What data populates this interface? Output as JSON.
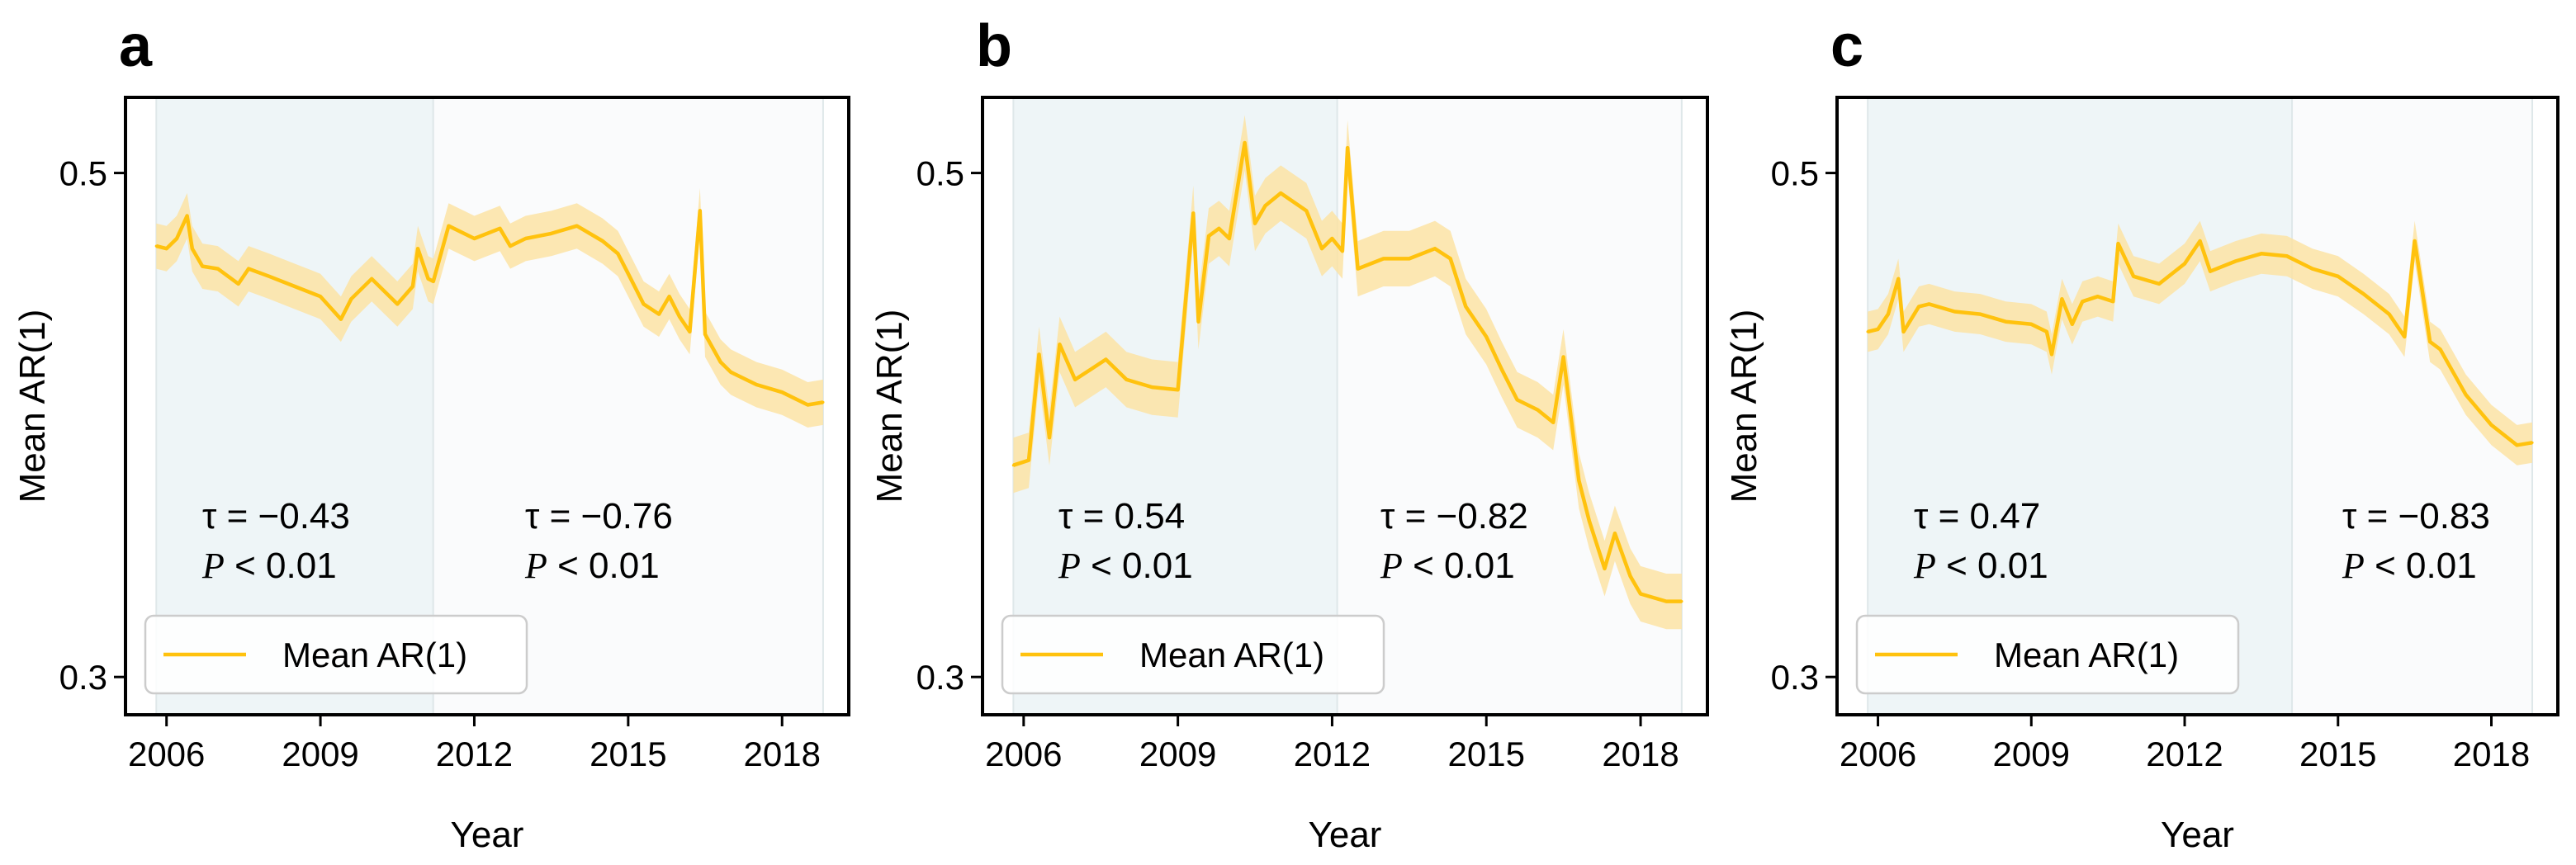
{
  "colors": {
    "line": "#ffc20e",
    "band": "#fbe3a4",
    "shade_early": "#eef5f7",
    "shade_late": "#fafbfc"
  },
  "chart_data": [
    {
      "type": "line",
      "panel": "a",
      "xlabel": "Year",
      "ylabel": "Mean AR(1)",
      "xlim": [
        2005.2,
        2019.3
      ],
      "ylim": [
        0.285,
        0.53
      ],
      "xticks": [
        2006,
        2009,
        2012,
        2015,
        2018
      ],
      "yticks": [
        0.3,
        0.5
      ],
      "ytick_labels": [
        "0.3",
        "0.5"
      ],
      "shaded_periods": [
        [
          2005.8,
          2011.2
        ],
        [
          2011.2,
          2018.8
        ]
      ],
      "legend": "Mean AR(1)",
      "annotations": [
        {
          "tau": "τ = −0.43",
          "p_var": "P",
          "p_rest": " < 0.01"
        },
        {
          "tau": "τ = −0.76",
          "p_var": "P",
          "p_rest": " < 0.01"
        }
      ],
      "series": [
        {
          "name": "Mean AR(1)",
          "band": 0.009,
          "x": [
            2005.8,
            2006.0,
            2006.2,
            2006.4,
            2006.5,
            2006.7,
            2007.0,
            2007.4,
            2007.6,
            2008.0,
            2008.5,
            2009.0,
            2009.4,
            2009.6,
            2010.0,
            2010.5,
            2010.8,
            2010.9,
            2011.1,
            2011.2,
            2011.5,
            2012.0,
            2012.5,
            2012.7,
            2013.0,
            2013.5,
            2014.0,
            2014.5,
            2014.8,
            2015.0,
            2015.3,
            2015.6,
            2015.8,
            2016.0,
            2016.2,
            2016.4,
            2016.5,
            2016.8,
            2017.0,
            2017.5,
            2018.0,
            2018.5,
            2018.8
          ],
          "y": [
            0.471,
            0.47,
            0.474,
            0.483,
            0.47,
            0.463,
            0.462,
            0.456,
            0.462,
            0.459,
            0.455,
            0.451,
            0.442,
            0.45,
            0.458,
            0.448,
            0.455,
            0.47,
            0.458,
            0.457,
            0.479,
            0.474,
            0.478,
            0.471,
            0.474,
            0.476,
            0.479,
            0.473,
            0.468,
            0.46,
            0.448,
            0.444,
            0.451,
            0.443,
            0.437,
            0.485,
            0.436,
            0.425,
            0.421,
            0.416,
            0.413,
            0.408,
            0.409
          ]
        }
      ]
    },
    {
      "type": "line",
      "panel": "b",
      "xlabel": "Year",
      "ylabel": "Mean AR(1)",
      "xlim": [
        2005.2,
        2019.3
      ],
      "ylim": [
        0.285,
        0.53
      ],
      "xticks": [
        2006,
        2009,
        2012,
        2015,
        2018
      ],
      "yticks": [
        0.3,
        0.5
      ],
      "ytick_labels": [
        "0.3",
        "0.5"
      ],
      "shaded_periods": [
        [
          2005.8,
          2012.1
        ],
        [
          2012.1,
          2018.8
        ]
      ],
      "legend": "Mean AR(1)",
      "annotations": [
        {
          "tau": "τ = 0.54",
          "p_var": "P",
          "p_rest": " < 0.01"
        },
        {
          "tau": "τ = −0.82",
          "p_var": "P",
          "p_rest": " < 0.01"
        }
      ],
      "series": [
        {
          "name": "Mean AR(1)",
          "band": 0.011,
          "x": [
            2005.8,
            2006.1,
            2006.3,
            2006.5,
            2006.7,
            2007.0,
            2007.3,
            2007.6,
            2008.0,
            2008.5,
            2009.0,
            2009.3,
            2009.4,
            2009.6,
            2009.8,
            2010.0,
            2010.3,
            2010.5,
            2010.7,
            2011.0,
            2011.5,
            2011.8,
            2012.0,
            2012.2,
            2012.3,
            2012.5,
            2013.0,
            2013.5,
            2014.0,
            2014.3,
            2014.6,
            2015.0,
            2015.3,
            2015.6,
            2016.0,
            2016.3,
            2016.5,
            2016.8,
            2017.0,
            2017.3,
            2017.5,
            2017.8,
            2018.0,
            2018.5,
            2018.8
          ],
          "y": [
            0.384,
            0.386,
            0.428,
            0.395,
            0.432,
            0.418,
            0.422,
            0.426,
            0.418,
            0.415,
            0.414,
            0.484,
            0.441,
            0.475,
            0.478,
            0.474,
            0.512,
            0.48,
            0.487,
            0.492,
            0.485,
            0.47,
            0.474,
            0.469,
            0.51,
            0.462,
            0.466,
            0.466,
            0.47,
            0.466,
            0.447,
            0.435,
            0.422,
            0.41,
            0.406,
            0.401,
            0.427,
            0.378,
            0.362,
            0.343,
            0.357,
            0.34,
            0.333,
            0.33,
            0.33
          ]
        }
      ]
    },
    {
      "type": "line",
      "panel": "c",
      "xlabel": "Year",
      "ylabel": "Mean AR(1)",
      "xlim": [
        2005.2,
        2019.3
      ],
      "ylim": [
        0.285,
        0.53
      ],
      "xticks": [
        2006,
        2009,
        2012,
        2015,
        2018
      ],
      "yticks": [
        0.3,
        0.5
      ],
      "ytick_labels": [
        "0.3",
        "0.5"
      ],
      "shaded_periods": [
        [
          2005.8,
          2014.1
        ],
        [
          2014.1,
          2018.8
        ]
      ],
      "legend": "Mean AR(1)",
      "annotations": [
        {
          "tau": "τ = 0.47",
          "p_var": "P",
          "p_rest": " < 0.01"
        },
        {
          "tau": "τ = −0.83",
          "p_var": "P",
          "p_rest": " < 0.01"
        }
      ],
      "series": [
        {
          "name": "Mean AR(1)",
          "band": 0.008,
          "x": [
            2005.8,
            2006.0,
            2006.2,
            2006.4,
            2006.5,
            2006.8,
            2007.0,
            2007.5,
            2008.0,
            2008.5,
            2009.0,
            2009.3,
            2009.4,
            2009.6,
            2009.8,
            2010.0,
            2010.3,
            2010.6,
            2010.7,
            2011.0,
            2011.5,
            2012.0,
            2012.3,
            2012.5,
            2013.0,
            2013.5,
            2014.0,
            2014.5,
            2015.0,
            2015.5,
            2016.0,
            2016.3,
            2016.5,
            2016.8,
            2017.0,
            2017.5,
            2018.0,
            2018.5,
            2018.8
          ],
          "y": [
            0.437,
            0.438,
            0.444,
            0.458,
            0.437,
            0.447,
            0.448,
            0.445,
            0.444,
            0.441,
            0.44,
            0.437,
            0.428,
            0.45,
            0.44,
            0.449,
            0.451,
            0.449,
            0.472,
            0.459,
            0.456,
            0.464,
            0.473,
            0.461,
            0.465,
            0.468,
            0.467,
            0.462,
            0.459,
            0.452,
            0.444,
            0.435,
            0.473,
            0.433,
            0.43,
            0.412,
            0.4,
            0.392,
            0.393
          ]
        }
      ]
    }
  ]
}
